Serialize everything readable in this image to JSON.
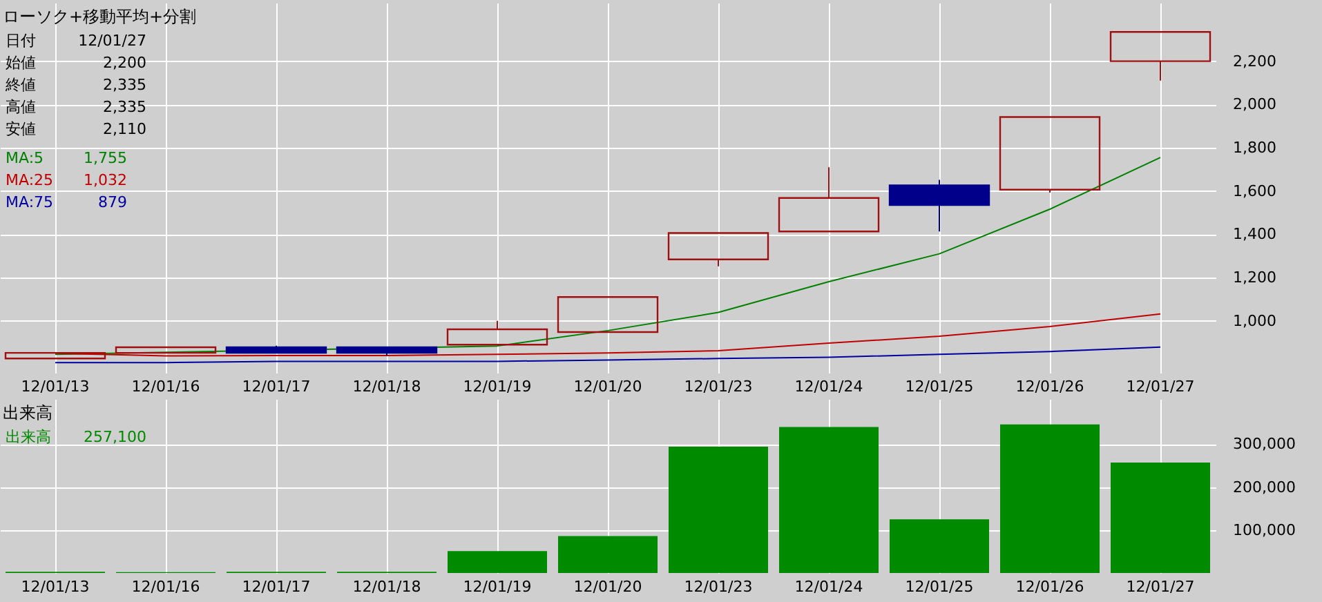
{
  "chart_data": [
    {
      "type": "candlestick",
      "title": "ローソク+移動平均+分割",
      "categories": [
        "12/01/13",
        "12/01/16",
        "12/01/17",
        "12/01/18",
        "12/01/19",
        "12/01/20",
        "12/01/23",
        "12/01/24",
        "12/01/25",
        "12/01/26",
        "12/01/27"
      ],
      "ohlc": [
        [
          826,
          852,
          826,
          852
        ],
        [
          852,
          878,
          852,
          878
        ],
        [
          878,
          885,
          852,
          852
        ],
        [
          878,
          878,
          839,
          852
        ],
        [
          890,
          1000,
          890,
          961
        ],
        [
          948,
          1110,
          948,
          1110
        ],
        [
          1284,
          1406,
          1252,
          1406
        ],
        [
          1413,
          1710,
          1413,
          1568
        ],
        [
          1626,
          1652,
          1413,
          1535
        ],
        [
          1606,
          1942,
          1593,
          1942
        ],
        [
          2200,
          2335,
          2110,
          2335
        ]
      ],
      "colors": [
        "#a01010",
        "#a01010",
        "#00008b",
        "#00008b",
        "#a01010",
        "#a01010",
        "#a01010",
        "#a01010",
        "#00008b",
        "#a01010",
        "#a01010"
      ],
      "series": [
        {
          "type": "line",
          "name": "MA:5",
          "color": "#008000",
          "values": [
            845,
            null,
            null,
            null,
            884,
            955,
            1039,
            1181,
            1310,
            1516,
            1755
          ]
        },
        {
          "type": "line",
          "name": "MA:25",
          "color": "#c00000",
          "values": [
            850,
            838,
            840,
            840,
            845,
            852,
            862,
            897,
            929,
            974,
            1032
          ]
        },
        {
          "type": "line",
          "name": "MA:75",
          "color": "#0000a0",
          "values": [
            807,
            807,
            813,
            813,
            813,
            819,
            826,
            832,
            845,
            858,
            879
          ]
        }
      ],
      "annotations": [
        "日付",
        "12/01/27",
        "始値",
        "2,200",
        "終値",
        "2,335",
        "高値",
        "2,335",
        "安値",
        "2,110",
        "1,755",
        "1,032",
        "879"
      ],
      "ylim": [
        760,
        2470
      ],
      "yticks": [
        {
          "value": 1000,
          "label": "1,000"
        },
        {
          "value": 1200,
          "label": "1,200"
        },
        {
          "value": 1400,
          "label": "1,400"
        },
        {
          "value": 1600,
          "label": "1,600"
        },
        {
          "value": 1800,
          "label": "1,800"
        },
        {
          "value": 2000,
          "label": "2,000"
        },
        {
          "value": 2200,
          "label": "2,200"
        }
      ],
      "grid": true,
      "legend": "top left"
    },
    {
      "type": "bar",
      "title": "出来高",
      "categories": [
        "12/01/13",
        "12/01/16",
        "12/01/17",
        "12/01/18",
        "12/01/19",
        "12/01/20",
        "12/01/23",
        "12/01/24",
        "12/01/25",
        "12/01/26",
        "12/01/27"
      ],
      "values": [
        3000,
        2000,
        3000,
        3000,
        51000,
        86000,
        294000,
        340000,
        125000,
        346000,
        257100
      ],
      "color": "#008a00",
      "annotations": [
        "出来高",
        "257,100"
      ],
      "ylim": [
        0,
        405000
      ],
      "yticks": [
        {
          "value": 100000,
          "label": "100,000"
        },
        {
          "value": 200000,
          "label": "200,000"
        },
        {
          "value": 300000,
          "label": "300,000"
        }
      ],
      "grid": true
    }
  ]
}
